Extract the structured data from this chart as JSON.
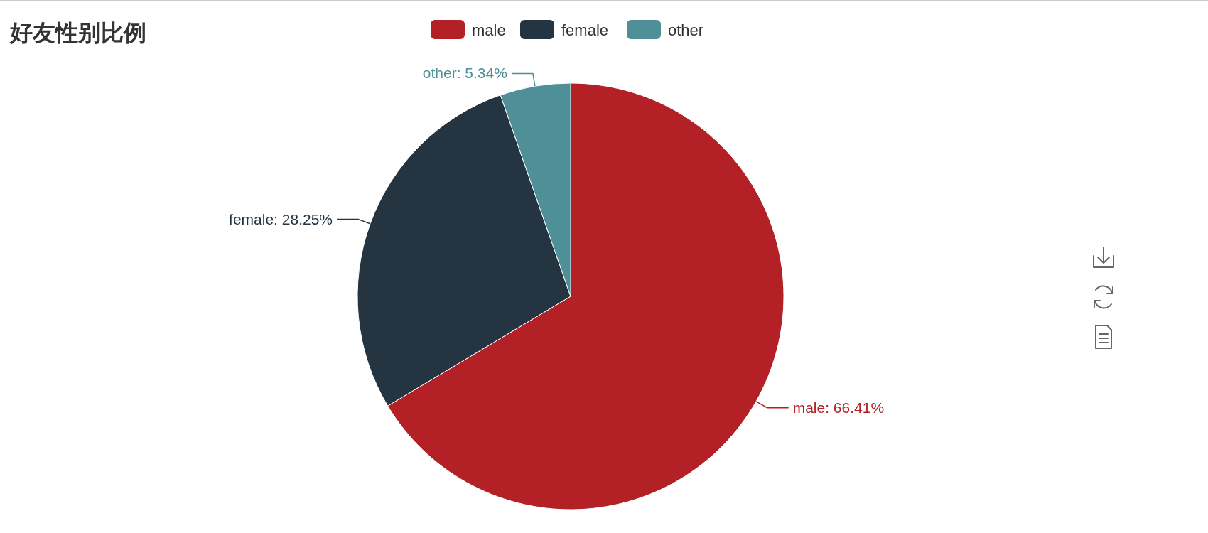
{
  "chart_data": {
    "type": "pie",
    "title": "好友性别比例",
    "categories": [
      "male",
      "female",
      "other"
    ],
    "values": [
      66.41,
      28.25,
      5.34
    ],
    "colors": [
      "#b32025",
      "#243441",
      "#4f8f97"
    ],
    "value_labels": [
      "male: 66.41%",
      "female: 28.25%",
      "other: 5.34%"
    ],
    "legend": "top"
  }
}
